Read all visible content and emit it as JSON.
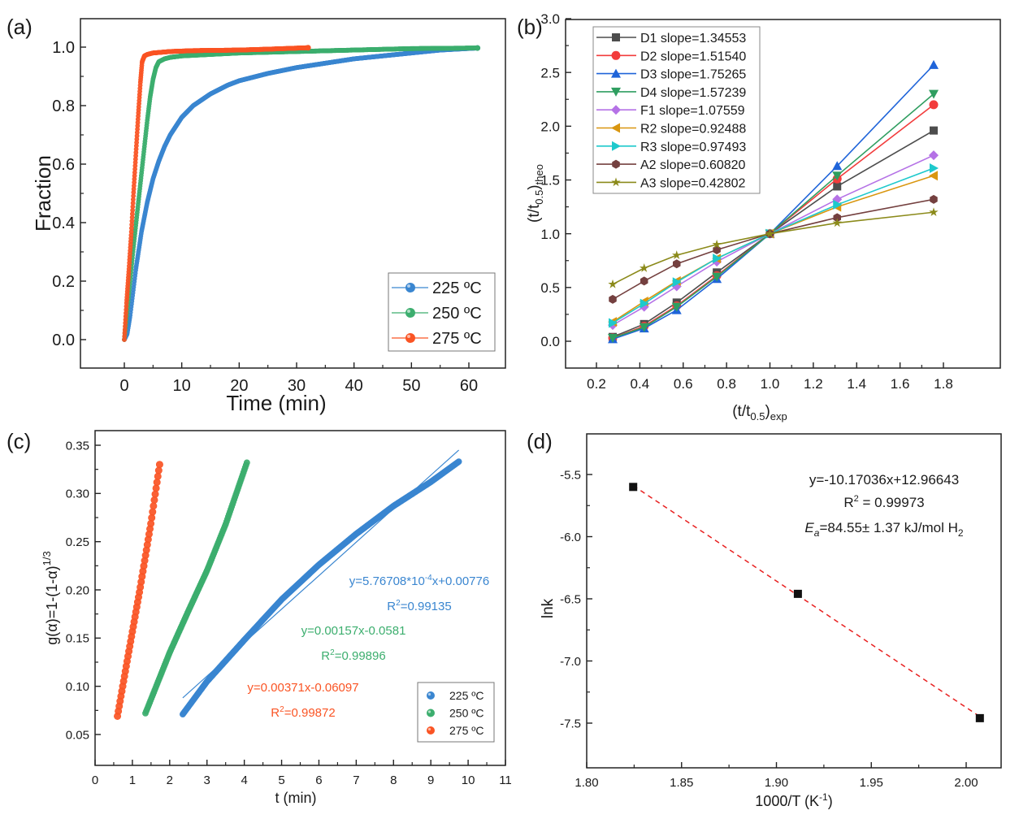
{
  "figure": {
    "panels": [
      "(a)",
      "(b)",
      "(c)",
      "(d)"
    ]
  },
  "colors": {
    "blue": "#3a86d0",
    "green": "#3cae6e",
    "red": "#fa5424",
    "D1": "#4d4d4d",
    "D2": "#f23c3c",
    "D3": "#1f64d9",
    "D4": "#2f9e60",
    "F1": "#b572e6",
    "R2": "#d9960f",
    "R3": "#1ec9cc",
    "A2": "#74403f",
    "A3": "#8b8a1a",
    "fit_d": "#e82020"
  },
  "chart_data": [
    {
      "panel": "(a)",
      "type": "scatter",
      "title": "",
      "xlabel": "Time (min)",
      "ylabel": "Fraction",
      "xlim": [
        -5,
        64
      ],
      "ylim": [
        -0.1,
        1.1
      ],
      "xticks": [
        0,
        10,
        20,
        30,
        40,
        50,
        60
      ],
      "xtick_labels": [
        "0",
        "10",
        "20",
        "30",
        "40",
        "50",
        "60"
      ],
      "yticks": [
        0.0,
        0.2,
        0.4,
        0.6,
        0.8,
        1.0
      ],
      "ytick_labels": [
        "0.0",
        "0.2",
        "0.4",
        "0.6",
        "0.8",
        "1.0"
      ],
      "legend_position": "bottom-right",
      "series": [
        {
          "name": "225 ºC",
          "color_key": "blue",
          "x": [
            0,
            0.5,
            1,
            1.5,
            2,
            3,
            4,
            5,
            6,
            7,
            8,
            10,
            12,
            15,
            18,
            20,
            25,
            30,
            35,
            40,
            45,
            50,
            55,
            61.5
          ],
          "y": [
            0,
            0.02,
            0.08,
            0.16,
            0.24,
            0.37,
            0.47,
            0.55,
            0.61,
            0.66,
            0.7,
            0.76,
            0.8,
            0.84,
            0.87,
            0.885,
            0.91,
            0.93,
            0.945,
            0.96,
            0.97,
            0.98,
            0.99,
            0.997
          ]
        },
        {
          "name": "250 ºC",
          "color_key": "green",
          "x": [
            0,
            0.5,
            1,
            1.5,
            2,
            2.5,
            3,
            3.5,
            4,
            4.5,
            5,
            5.5,
            6,
            7,
            8,
            10,
            15,
            20,
            30,
            40,
            50,
            61.5
          ],
          "y": [
            0,
            0.1,
            0.2,
            0.3,
            0.39,
            0.48,
            0.57,
            0.66,
            0.75,
            0.83,
            0.89,
            0.93,
            0.95,
            0.96,
            0.965,
            0.97,
            0.975,
            0.98,
            0.985,
            0.99,
            0.995,
            0.997
          ]
        },
        {
          "name": "275 ºC",
          "color_key": "red",
          "x": [
            0,
            0.4,
            0.8,
            1.2,
            1.6,
            2,
            2.4,
            2.8,
            3.1,
            3.5,
            4,
            5,
            8,
            12,
            20,
            25,
            32
          ],
          "y": [
            0,
            0.13,
            0.24,
            0.36,
            0.5,
            0.63,
            0.76,
            0.88,
            0.95,
            0.97,
            0.975,
            0.98,
            0.985,
            0.988,
            0.99,
            0.993,
            0.998
          ]
        }
      ]
    },
    {
      "panel": "(b)",
      "type": "line",
      "title": "",
      "xlabel": "(t/t0.5)exp",
      "ylabel": "(t/t0.5)theo",
      "xlim": [
        0.1,
        1.9
      ],
      "ylim": [
        -0.25,
        3.0
      ],
      "xticks": [
        0.2,
        0.4,
        0.6,
        0.8,
        1.0,
        1.2,
        1.4,
        1.6,
        1.8
      ],
      "xtick_labels": [
        "0.2",
        "0.4",
        "0.6",
        "0.8",
        "1.0",
        "1.2",
        "1.4",
        "1.6",
        "1.8"
      ],
      "yticks": [
        0.0,
        0.5,
        1.0,
        1.5,
        2.0,
        2.5,
        3.0
      ],
      "ytick_labels": [
        "0.0",
        "0.5",
        "1.0",
        "1.5",
        "2.0",
        "2.5",
        "3.0"
      ],
      "legend_position": "top-left",
      "x": [
        0.275,
        0.42,
        0.57,
        0.755,
        1.0,
        1.31,
        1.755
      ],
      "series": [
        {
          "name": "D1 slope=1.34553",
          "color_key": "D1",
          "marker": "square",
          "values": [
            0.04,
            0.16,
            0.36,
            0.64,
            1.0,
            1.44,
            1.96
          ]
        },
        {
          "name": "D2 slope=1.51540",
          "color_key": "D2",
          "marker": "circle",
          "values": [
            0.03,
            0.14,
            0.33,
            0.61,
            1.0,
            1.51,
            2.2
          ]
        },
        {
          "name": "D3 slope=1.75265",
          "color_key": "D3",
          "marker": "triangle-up",
          "values": [
            0.02,
            0.12,
            0.29,
            0.58,
            1.0,
            1.63,
            2.57
          ]
        },
        {
          "name": "D4 slope=1.57239",
          "color_key": "D4",
          "marker": "triangle-down",
          "values": [
            0.03,
            0.13,
            0.32,
            0.6,
            1.0,
            1.54,
            2.3
          ]
        },
        {
          "name": "F1 slope=1.07559",
          "color_key": "F1",
          "marker": "diamond",
          "values": [
            0.15,
            0.32,
            0.51,
            0.74,
            1.0,
            1.32,
            1.73
          ]
        },
        {
          "name": "R2 slope=0.92488",
          "color_key": "R2",
          "marker": "triangle-left",
          "values": [
            0.18,
            0.37,
            0.56,
            0.77,
            1.0,
            1.25,
            1.54
          ]
        },
        {
          "name": "R3 slope=0.97493",
          "color_key": "R3",
          "marker": "triangle-right",
          "values": [
            0.17,
            0.35,
            0.55,
            0.77,
            1.0,
            1.27,
            1.61
          ]
        },
        {
          "name": "A2 slope=0.60820",
          "color_key": "A2",
          "marker": "hexagon",
          "values": [
            0.39,
            0.56,
            0.72,
            0.85,
            1.0,
            1.15,
            1.32
          ]
        },
        {
          "name": "A3 slope=0.42802",
          "color_key": "A3",
          "marker": "star",
          "values": [
            0.53,
            0.68,
            0.8,
            0.9,
            1.0,
            1.1,
            1.2
          ]
        }
      ]
    },
    {
      "panel": "(c)",
      "type": "scatter",
      "title": "",
      "xlabel": "t (min)",
      "ylabel": "g(α)=1-(1-α)^1/3",
      "xlim": [
        0,
        11
      ],
      "ylim": [
        0.025,
        0.37
      ],
      "xticks": [
        0,
        1,
        2,
        3,
        4,
        5,
        6,
        7,
        8,
        9,
        10,
        11
      ],
      "xtick_labels": [
        "0",
        "1",
        "2",
        "3",
        "4",
        "5",
        "6",
        "7",
        "8",
        "9",
        "10",
        "11"
      ],
      "yticks": [
        0.05,
        0.1,
        0.15,
        0.2,
        0.25,
        0.3,
        0.35
      ],
      "ytick_labels": [
        "0.05",
        "0.10",
        "0.15",
        "0.20",
        "0.25",
        "0.30",
        "0.35"
      ],
      "legend_position": "bottom-right",
      "series": [
        {
          "name": "225 ºC",
          "color_key": "blue",
          "x": [
            2.35,
            3,
            4,
            5,
            6,
            7,
            8,
            9,
            9.75
          ],
          "y": [
            0.071,
            0.105,
            0.148,
            0.19,
            0.226,
            0.258,
            0.287,
            0.312,
            0.333
          ],
          "fit": {
            "x": [
              2.35,
              9.75
            ],
            "y": [
              0.088,
              0.345
            ]
          },
          "equation": "y=5.76708*10^-4x+0.00776",
          "r2": "R²=0.99135"
        },
        {
          "name": "250 ºC",
          "color_key": "green",
          "x": [
            1.35,
            2,
            2.5,
            3,
            3.5,
            4.07
          ],
          "y": [
            0.072,
            0.135,
            0.178,
            0.22,
            0.268,
            0.332
          ],
          "equation": "y=0.00157x-0.0581",
          "r2": "R²=0.99896"
        },
        {
          "name": "275 ºC",
          "color_key": "red",
          "x": [
            0.6,
            0.9,
            1.2,
            1.5,
            1.73
          ],
          "y": [
            0.069,
            0.135,
            0.2,
            0.27,
            0.33
          ],
          "equation": "y=0.00371x-0.06097",
          "r2": "R²=0.99872"
        }
      ]
    },
    {
      "panel": "(d)",
      "type": "scatter",
      "title": "",
      "xlabel": "1000/T (K-1)",
      "ylabel": "lnk",
      "xlim": [
        1.8,
        2.025
      ],
      "ylim": [
        -7.75,
        -5.25
      ],
      "xticks": [
        1.8,
        1.85,
        1.9,
        1.95,
        2.0
      ],
      "xtick_labels": [
        "1.80",
        "1.85",
        "1.90",
        "1.95",
        "2.00"
      ],
      "yticks": [
        -5.5,
        -6.0,
        -6.5,
        -7.0,
        -7.5
      ],
      "ytick_labels": [
        "-5.5",
        "-6.0",
        "-6.5",
        "-7.0",
        "-7.5"
      ],
      "x": [
        1.8245,
        1.9113,
        2.0072
      ],
      "y": [
        -5.6,
        -6.46,
        -7.46
      ],
      "fit": {
        "slope": -10.17036,
        "intercept": 12.96643
      },
      "annotations": [
        "y=-10.17036x+12.96643",
        "R² = 0.99973",
        "Ea=84.55± 1.37 kJ/mol H2"
      ]
    }
  ],
  "labels": {
    "a": {
      "panel": "(a)",
      "xlabel": "Time (min)",
      "ylabel": "Fraction",
      "legend": [
        "225 ºC",
        "250 ºC",
        "275 ºC"
      ]
    },
    "b": {
      "panel": "(b)",
      "xlabel_main": "(t/t",
      "xlabel_sub": "0.5",
      "xlabel_close": ")",
      "xlabel_sub2": "exp",
      "ylabel_main": "(t/t",
      "ylabel_sub": "0.5",
      "ylabel_close": ")",
      "ylabel_sub2": "theo"
    },
    "c": {
      "panel": "(c)",
      "xlabel": "t (min)",
      "ylabel_main": "g(α)=1-(1-α)",
      "ylabel_sup": "1/3",
      "eq_blue_a": "y=5.76708*10",
      "eq_blue_sup": "-4",
      "eq_blue_b": "x+0.00776",
      "r2_blue_a": "R",
      "r2_blue_sup": "2",
      "r2_blue_b": "=0.99135",
      "eq_green": "y=0.00157x-0.0581",
      "r2_green_a": "R",
      "r2_green_sup": "2",
      "r2_green_b": "=0.99896",
      "eq_red": "y=0.00371x-0.06097",
      "r2_red_a": "R",
      "r2_red_sup": "2",
      "r2_red_b": "=0.99872",
      "legend": [
        "225 ºC",
        "250 ºC",
        "275 ºC"
      ]
    },
    "d": {
      "panel": "(d)",
      "ylabel": "lnk",
      "xlabel_main": "1000/T (K",
      "xlabel_sup": "-1",
      "xlabel_close": ")",
      "eq": "y=-10.17036x+12.96643",
      "r2_a": "R",
      "r2_sup": "2",
      "r2_b": " = 0.99973",
      "ea_a": "E",
      "ea_sub": "a",
      "ea_b": "=84.55± 1.37 kJ/mol H",
      "ea_sub2": "2"
    }
  }
}
